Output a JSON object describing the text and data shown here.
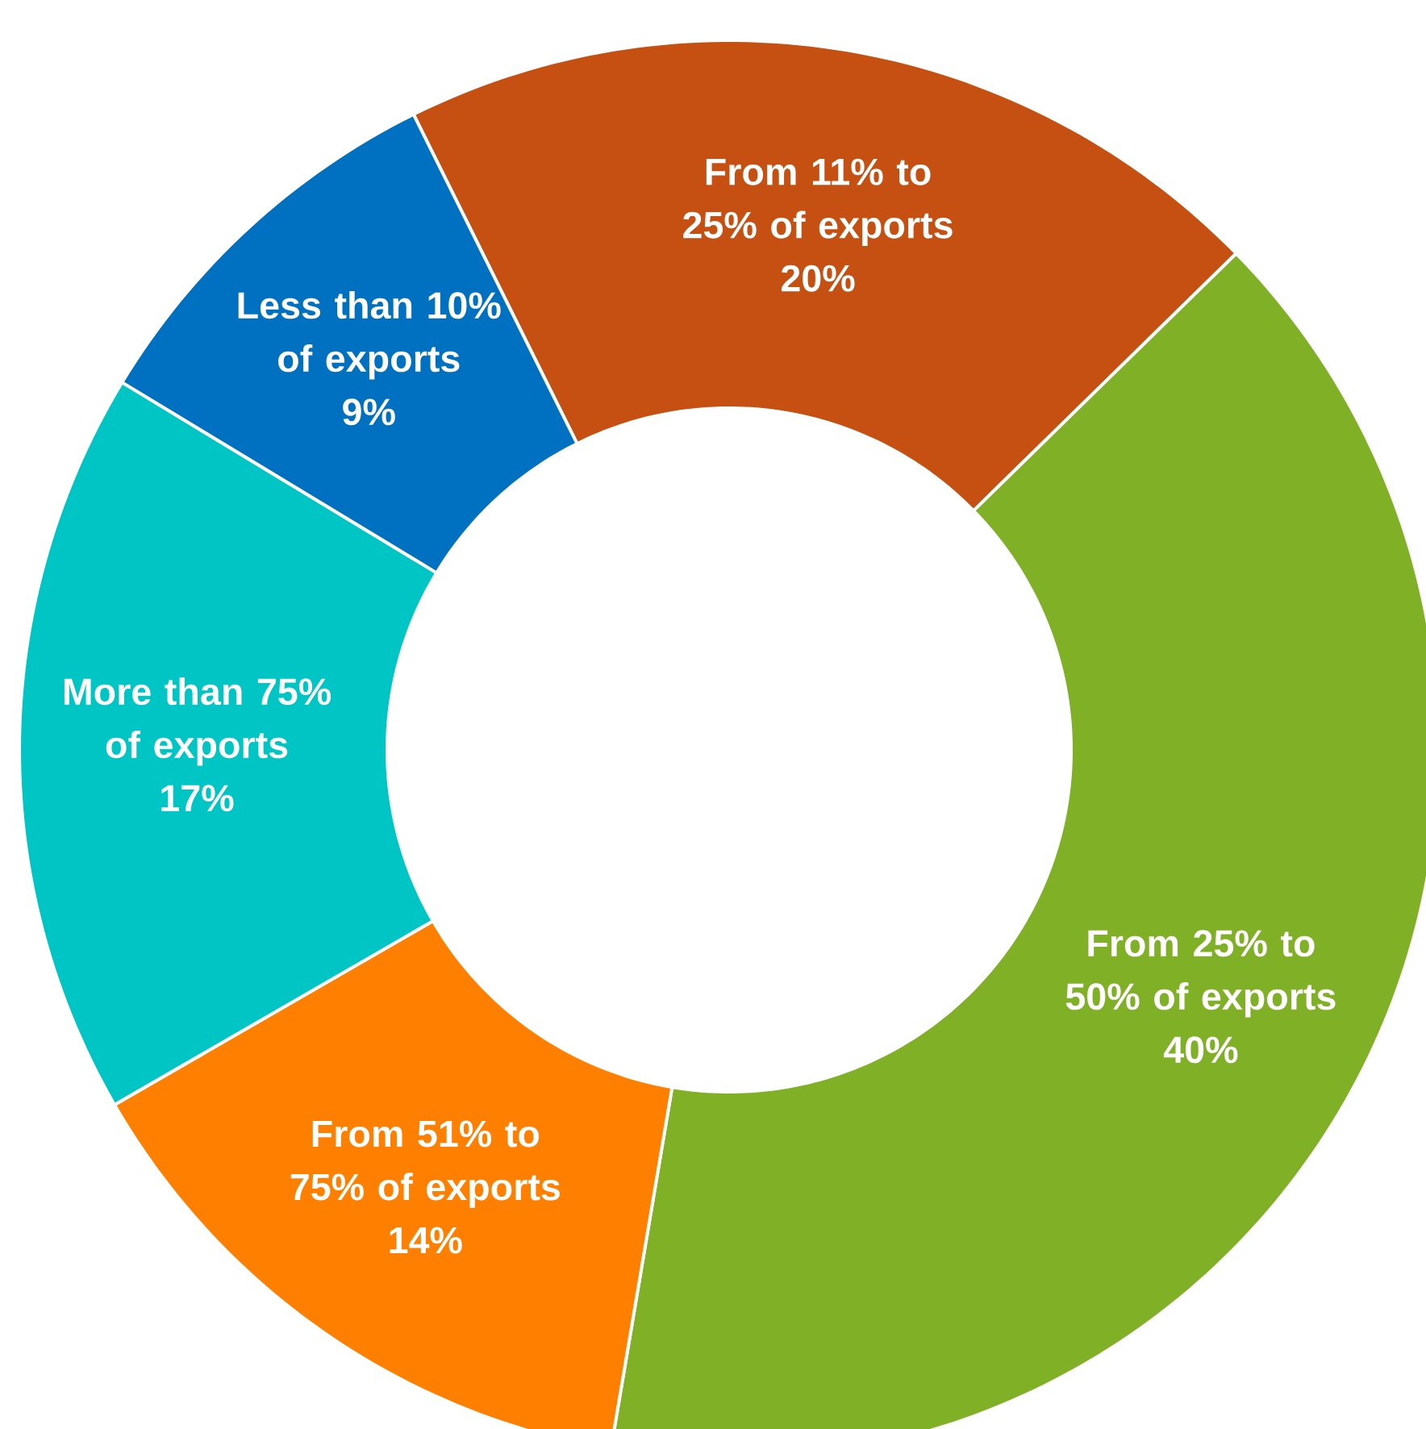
{
  "chart_data": {
    "type": "donut",
    "categories": [
      "From 11% to 25% of exports",
      "From 25% to 50% of exports",
      "From 51% to 75% of exports",
      "More than 75% of exports",
      "Less than 10% of exports"
    ],
    "values": [
      20,
      40,
      14,
      17,
      9
    ],
    "value_labels": [
      "20%",
      "40%",
      "14%",
      "17%",
      "9%"
    ],
    "colors": [
      "#c55011",
      "#80b025",
      "#ff7f00",
      "#00c5c5",
      "#0070c0"
    ]
  }
}
